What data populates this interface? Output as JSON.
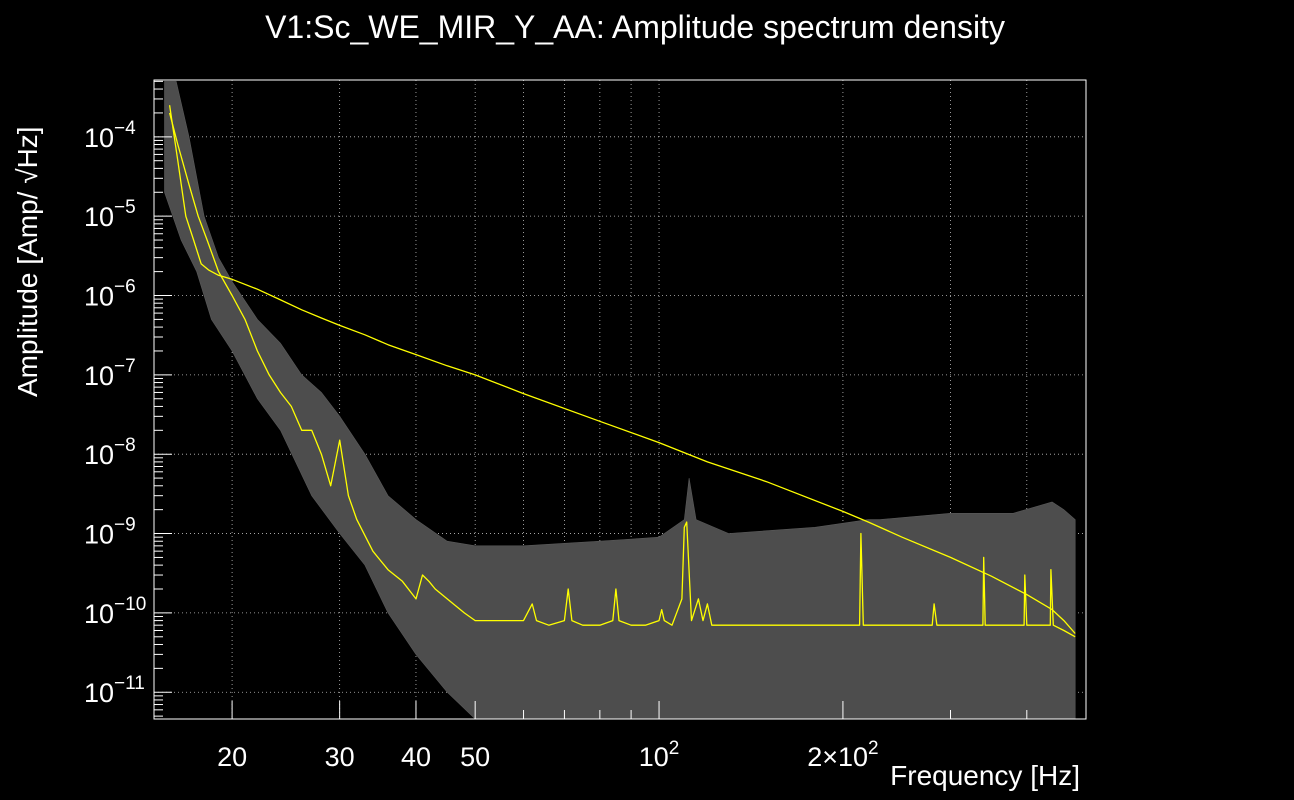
{
  "chart_data": {
    "type": "line",
    "title": "V1:Sc_WE_MIR_Y_AA: Amplitude spectrum density",
    "xlabel": "Frequency [Hz]",
    "ylabel": "Amplitude [Amp/ √Hz]",
    "x_scale": "log",
    "y_scale": "log",
    "xlim": [
      14.9,
      500
    ],
    "ylim": [
      4.6e-12,
      0.00052
    ],
    "grid": true,
    "x_ticks": [
      {
        "value": 20,
        "label": "20"
      },
      {
        "value": 30,
        "label": "30"
      },
      {
        "value": 40,
        "label": "40"
      },
      {
        "value": 50,
        "label": "50"
      },
      {
        "value": 100,
        "label": "10",
        "exp": "2"
      },
      {
        "value": 200,
        "label": "2×10",
        "exp": "2"
      }
    ],
    "y_ticks": [
      {
        "value": 0.0001,
        "label": "10",
        "exp": "−4"
      },
      {
        "value": 1e-05,
        "label": "10",
        "exp": "−5"
      },
      {
        "value": 1e-06,
        "label": "10",
        "exp": "−6"
      },
      {
        "value": 1e-07,
        "label": "10",
        "exp": "−7"
      },
      {
        "value": 1e-08,
        "label": "10",
        "exp": "−8"
      },
      {
        "value": 1e-09,
        "label": "10",
        "exp": "−9"
      },
      {
        "value": 1e-10,
        "label": "10",
        "exp": "−10"
      },
      {
        "value": 1e-11,
        "label": "10",
        "exp": "−11"
      }
    ],
    "series": [
      {
        "kind": "band",
        "color": "#4d4d4d",
        "upper_x": [
          15.5,
          16.2,
          17.0,
          18.0,
          19.0,
          20.0,
          22.0,
          24.0,
          26.0,
          28.0,
          30.0,
          33.0,
          36.0,
          40.0,
          45.0,
          50.0,
          60.0,
          80.0,
          100.0,
          110.0,
          112.0,
          115.0,
          130.0,
          180.0,
          220.0,
          230.0,
          300.0,
          380.0,
          440.0,
          460.0,
          480.0
        ],
        "upper_y": [
          0.0005,
          0.0005,
          0.0001,
          1e-05,
          3e-06,
          1.5e-06,
          5e-07,
          2.5e-07,
          1e-07,
          6e-08,
          3e-08,
          1e-08,
          3e-09,
          1.5e-09,
          8e-10,
          7e-10,
          7e-10,
          8e-10,
          9e-10,
          1.5e-09,
          5e-09,
          1.5e-09,
          1e-09,
          1.2e-09,
          1.5e-09,
          1.5e-09,
          1.8e-09,
          1.8e-09,
          2.5e-09,
          2e-09,
          1.5e-09
        ],
        "lower_x": [
          15.5,
          16.5,
          17.5,
          18.5,
          20.0,
          22.0,
          24.0,
          27.0,
          30.0,
          33.0,
          36.0,
          40.0,
          45.0,
          50.0,
          480.0
        ],
        "lower_y": [
          2e-05,
          5e-06,
          2e-06,
          5e-07,
          2e-07,
          5e-08,
          2e-08,
          3e-09,
          1e-09,
          4e-10,
          1e-10,
          3e-11,
          1e-11,
          4.6e-12,
          4.6e-12
        ]
      },
      {
        "kind": "line",
        "color": "#ffff00",
        "x": [
          15.8,
          16.3,
          16.8,
          17.3,
          17.8,
          18.3,
          19.0,
          20.0,
          22.0,
          24.0,
          26.0,
          28.0,
          30.0,
          33.0,
          36.0,
          40.0,
          45.0,
          50.0,
          60.0,
          80.0,
          100.0,
          120.0,
          150.0,
          200.0,
          220.0,
          250.0,
          300.0,
          350.0,
          400.0,
          440.0,
          460.0,
          480.0
        ],
        "y": [
          0.00025,
          5e-05,
          1e-05,
          5e-06,
          2.5e-06,
          2.1e-06,
          1.8e-06,
          1.6e-06,
          1.2e-06,
          8.8e-07,
          6.6e-07,
          5.2e-07,
          4.2e-07,
          3.2e-07,
          2.4e-07,
          1.8e-07,
          1.3e-07,
          1e-07,
          5.8e-08,
          2.6e-08,
          1.4e-08,
          8e-09,
          4.5e-09,
          1.9e-09,
          1.4e-09,
          9e-10,
          5e-10,
          2.9e-10,
          1.7e-10,
          1.1e-10,
          8e-11,
          5.5e-11
        ]
      },
      {
        "kind": "line",
        "color": "#ffff00",
        "x": [
          15.8,
          16.3,
          17.0,
          17.6,
          18.2,
          19.0,
          20.0,
          21.0,
          22.0,
          23.0,
          24.0,
          25.0,
          26.0,
          27.0,
          28.0,
          29.0,
          30.0,
          31.0,
          32.0,
          34.0,
          36.0,
          38.0,
          40.0,
          41.0,
          42.0,
          43.0,
          45.0,
          48.0,
          50.0,
          55.0,
          60.0,
          62.0,
          63.0,
          66.0,
          70.0,
          71.0,
          72.0,
          75.0,
          80.0,
          84.0,
          85.0,
          86.0,
          90.0,
          95.0,
          100.0,
          101.0,
          102.0,
          105.0,
          109.0,
          110.0,
          111.0,
          113.0,
          116.0,
          118.0,
          120.0,
          122.0,
          124.0,
          130.0,
          150.0,
          170.0,
          190.0,
          200.0,
          210.0,
          213.0,
          214.0,
          216.0,
          230.0,
          260.0,
          280.0,
          282.0,
          285.0,
          300.0,
          330.0,
          339.0,
          340.0,
          342.0,
          360.0,
          380.0,
          396.0,
          397.0,
          400.0,
          420.0,
          437.0,
          438.0,
          442.0,
          460.0,
          480.0
        ],
        "y": [
          0.0002,
          8e-05,
          2.5e-05,
          1e-05,
          5e-06,
          2e-06,
          1e-06,
          5e-07,
          2e-07,
          1e-07,
          6e-08,
          4e-08,
          2e-08,
          2e-08,
          1e-08,
          4e-09,
          1.5e-08,
          3e-09,
          1.5e-09,
          6e-10,
          3.5e-10,
          2.5e-10,
          1.5e-10,
          3e-10,
          2.5e-10,
          2e-10,
          1.5e-10,
          1e-10,
          8e-11,
          8e-11,
          8e-11,
          1.3e-10,
          8e-11,
          7e-11,
          8e-11,
          2e-10,
          8e-11,
          7e-11,
          7e-11,
          8e-11,
          2e-10,
          8e-11,
          7e-11,
          7e-11,
          8e-11,
          1.1e-10,
          8e-11,
          7e-11,
          1.5e-10,
          1.2e-09,
          1.4e-09,
          8e-11,
          1.5e-10,
          8e-11,
          1.3e-10,
          7e-11,
          7e-11,
          7e-11,
          7e-11,
          7e-11,
          7e-11,
          7e-11,
          7e-11,
          7e-11,
          1e-09,
          7e-11,
          7e-11,
          7e-11,
          7e-11,
          1.3e-10,
          7e-11,
          7e-11,
          7e-11,
          7e-11,
          5e-10,
          7e-11,
          7e-11,
          7e-11,
          7e-11,
          3e-10,
          7e-11,
          7e-11,
          7e-11,
          3.5e-10,
          7e-11,
          6e-11,
          5e-11
        ]
      }
    ]
  }
}
